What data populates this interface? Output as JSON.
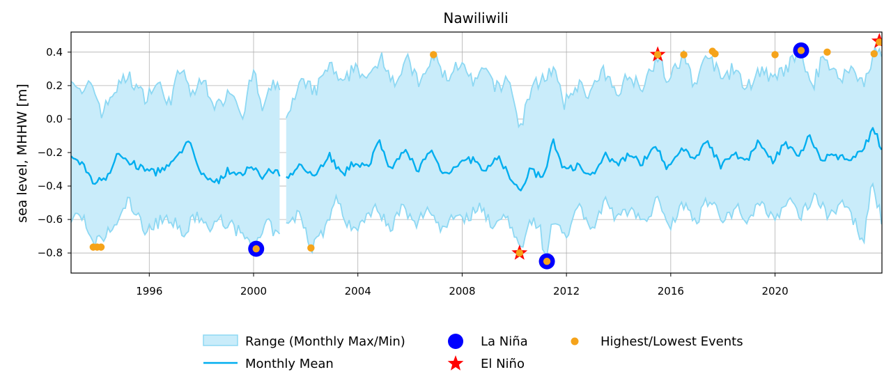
{
  "chart_data": {
    "type": "area",
    "title": "Nawiliwili",
    "xlabel": "",
    "ylabel": "sea level, MHHW [m]",
    "xlim": [
      1993.0,
      2024.1
    ],
    "ylim": [
      -0.92,
      0.52
    ],
    "grid": true,
    "legend_position": "bottom-center",
    "x_ticks": [
      1996,
      2000,
      2004,
      2008,
      2012,
      2016,
      2020
    ],
    "x_tick_labels": [
      "1996",
      "2000",
      "2004",
      "2008",
      "2012",
      "2016",
      "2020"
    ],
    "y_ticks": [
      -0.8,
      -0.6,
      -0.4,
      -0.2,
      0.0,
      0.2,
      0.4
    ],
    "y_tick_labels": [
      "−0.8",
      "−0.6",
      "−0.4",
      "−0.2",
      "0.0",
      "0.2",
      "0.4"
    ],
    "colors": {
      "range_fill": "#c9ecfa",
      "range_edge": "#8dd8f3",
      "mean": "#00aeef",
      "la_nina": "#0000ff",
      "el_nino": "#ff0000",
      "events": "#f5a31a"
    },
    "gap": [
      2001.05,
      2001.2
    ],
    "anchors": {
      "mean": [
        [
          1993.0,
          -0.24
        ],
        [
          1993.5,
          -0.27
        ],
        [
          1993.8,
          -0.38
        ],
        [
          1994.4,
          -0.34
        ],
        [
          1994.8,
          -0.21
        ],
        [
          1995.5,
          -0.28
        ],
        [
          1996.2,
          -0.32
        ],
        [
          1996.9,
          -0.27
        ],
        [
          1997.5,
          -0.13
        ],
        [
          1997.9,
          -0.3
        ],
        [
          1998.5,
          -0.39
        ],
        [
          1999.0,
          -0.31
        ],
        [
          1999.5,
          -0.34
        ],
        [
          1999.9,
          -0.26
        ],
        [
          2000.3,
          -0.36
        ],
        [
          2000.6,
          -0.31
        ],
        [
          2001.0,
          -0.33
        ],
        [
          2001.3,
          -0.37
        ],
        [
          2001.8,
          -0.25
        ],
        [
          2002.3,
          -0.35
        ],
        [
          2002.9,
          -0.21
        ],
        [
          2003.4,
          -0.34
        ],
        [
          2003.9,
          -0.25
        ],
        [
          2004.4,
          -0.3
        ],
        [
          2004.8,
          -0.1
        ],
        [
          2005.2,
          -0.32
        ],
        [
          2005.8,
          -0.19
        ],
        [
          2006.3,
          -0.3
        ],
        [
          2006.8,
          -0.19
        ],
        [
          2007.3,
          -0.33
        ],
        [
          2007.8,
          -0.27
        ],
        [
          2008.4,
          -0.24
        ],
        [
          2008.9,
          -0.32
        ],
        [
          2009.4,
          -0.22
        ],
        [
          2009.8,
          -0.34
        ],
        [
          2010.2,
          -0.44
        ],
        [
          2010.6,
          -0.3
        ],
        [
          2011.1,
          -0.36
        ],
        [
          2011.5,
          -0.13
        ],
        [
          2011.9,
          -0.3
        ],
        [
          2012.5,
          -0.28
        ],
        [
          2013.0,
          -0.33
        ],
        [
          2013.5,
          -0.22
        ],
        [
          2014.0,
          -0.28
        ],
        [
          2014.4,
          -0.2
        ],
        [
          2014.9,
          -0.27
        ],
        [
          2015.4,
          -0.14
        ],
        [
          2015.9,
          -0.3
        ],
        [
          2016.4,
          -0.18
        ],
        [
          2016.9,
          -0.24
        ],
        [
          2017.4,
          -0.12
        ],
        [
          2017.9,
          -0.28
        ],
        [
          2018.4,
          -0.19
        ],
        [
          2018.9,
          -0.26
        ],
        [
          2019.4,
          -0.13
        ],
        [
          2019.9,
          -0.25
        ],
        [
          2020.4,
          -0.14
        ],
        [
          2020.9,
          -0.23
        ],
        [
          2021.3,
          -0.1
        ],
        [
          2021.8,
          -0.24
        ],
        [
          2022.4,
          -0.22
        ],
        [
          2022.9,
          -0.26
        ],
        [
          2023.4,
          -0.16
        ],
        [
          2023.8,
          -0.06
        ],
        [
          2024.1,
          -0.19
        ]
      ],
      "upper": [
        [
          1993.0,
          0.27
        ],
        [
          1993.4,
          0.13
        ],
        [
          1993.8,
          0.22
        ],
        [
          1994.2,
          0.03
        ],
        [
          1994.6,
          0.16
        ],
        [
          1995.2,
          0.26
        ],
        [
          1995.8,
          0.13
        ],
        [
          1996.3,
          0.21
        ],
        [
          1996.8,
          0.1
        ],
        [
          1997.2,
          0.31
        ],
        [
          1997.6,
          0.15
        ],
        [
          1998.1,
          0.23
        ],
        [
          1998.6,
          0.06
        ],
        [
          1999.1,
          0.19
        ],
        [
          1999.6,
          0.03
        ],
        [
          2000.0,
          0.3
        ],
        [
          2000.3,
          0.05
        ],
        [
          2000.7,
          0.19
        ],
        [
          2001.0,
          0.2
        ],
        [
          2001.3,
          0.01
        ],
        [
          2001.8,
          0.21
        ],
        [
          2002.4,
          0.17
        ],
        [
          2002.9,
          0.33
        ],
        [
          2003.4,
          0.19
        ],
        [
          2003.9,
          0.33
        ],
        [
          2004.4,
          0.22
        ],
        [
          2004.9,
          0.39
        ],
        [
          2005.4,
          0.22
        ],
        [
          2005.9,
          0.35
        ],
        [
          2006.4,
          0.2
        ],
        [
          2006.9,
          0.38
        ],
        [
          2007.4,
          0.24
        ],
        [
          2007.9,
          0.34
        ],
        [
          2008.4,
          0.21
        ],
        [
          2008.9,
          0.29
        ],
        [
          2009.4,
          0.17
        ],
        [
          2009.8,
          0.26
        ],
        [
          2010.2,
          -0.07
        ],
        [
          2010.6,
          0.16
        ],
        [
          2011.0,
          0.24
        ],
        [
          2011.5,
          0.3
        ],
        [
          2011.9,
          0.08
        ],
        [
          2012.4,
          0.21
        ],
        [
          2012.9,
          0.15
        ],
        [
          2013.4,
          0.28
        ],
        [
          2013.9,
          0.16
        ],
        [
          2014.4,
          0.26
        ],
        [
          2014.9,
          0.2
        ],
        [
          2015.5,
          0.38
        ],
        [
          2015.9,
          0.22
        ],
        [
          2016.5,
          0.38
        ],
        [
          2016.9,
          0.21
        ],
        [
          2017.5,
          0.4
        ],
        [
          2017.9,
          0.23
        ],
        [
          2018.4,
          0.3
        ],
        [
          2018.9,
          0.18
        ],
        [
          2019.5,
          0.31
        ],
        [
          2019.9,
          0.22
        ],
        [
          2020.4,
          0.3
        ],
        [
          2021.0,
          0.4
        ],
        [
          2021.4,
          0.18
        ],
        [
          2021.9,
          0.39
        ],
        [
          2022.4,
          0.24
        ],
        [
          2022.9,
          0.3
        ],
        [
          2023.4,
          0.22
        ],
        [
          2023.8,
          0.4
        ],
        [
          2024.1,
          0.38
        ]
      ],
      "lower": [
        [
          1993.0,
          -0.6
        ],
        [
          1993.4,
          -0.56
        ],
        [
          1993.8,
          -0.76
        ],
        [
          1994.3,
          -0.7
        ],
        [
          1994.8,
          -0.62
        ],
        [
          1995.2,
          -0.48
        ],
        [
          1995.8,
          -0.66
        ],
        [
          1996.3,
          -0.62
        ],
        [
          1996.8,
          -0.58
        ],
        [
          1997.3,
          -0.7
        ],
        [
          1997.8,
          -0.57
        ],
        [
          1998.3,
          -0.66
        ],
        [
          1998.8,
          -0.6
        ],
        [
          1999.3,
          -0.66
        ],
        [
          1999.8,
          -0.71
        ],
        [
          2000.1,
          -0.77
        ],
        [
          2000.5,
          -0.62
        ],
        [
          2001.0,
          -0.71
        ],
        [
          2001.3,
          -0.63
        ],
        [
          2001.8,
          -0.56
        ],
        [
          2002.2,
          -0.77
        ],
        [
          2002.7,
          -0.66
        ],
        [
          2003.2,
          -0.48
        ],
        [
          2003.7,
          -0.65
        ],
        [
          2004.2,
          -0.62
        ],
        [
          2004.7,
          -0.5
        ],
        [
          2005.2,
          -0.66
        ],
        [
          2005.7,
          -0.53
        ],
        [
          2006.2,
          -0.64
        ],
        [
          2006.7,
          -0.52
        ],
        [
          2007.2,
          -0.66
        ],
        [
          2007.7,
          -0.56
        ],
        [
          2008.2,
          -0.6
        ],
        [
          2008.7,
          -0.5
        ],
        [
          2009.2,
          -0.66
        ],
        [
          2009.7,
          -0.55
        ],
        [
          2010.2,
          -0.8
        ],
        [
          2010.6,
          -0.58
        ],
        [
          2011.0,
          -0.66
        ],
        [
          2011.2,
          -0.85
        ],
        [
          2011.5,
          -0.6
        ],
        [
          2012.0,
          -0.68
        ],
        [
          2012.5,
          -0.52
        ],
        [
          2013.0,
          -0.66
        ],
        [
          2013.5,
          -0.5
        ],
        [
          2014.0,
          -0.6
        ],
        [
          2014.5,
          -0.52
        ],
        [
          2015.0,
          -0.63
        ],
        [
          2015.5,
          -0.48
        ],
        [
          2016.0,
          -0.63
        ],
        [
          2016.5,
          -0.5
        ],
        [
          2017.0,
          -0.6
        ],
        [
          2017.5,
          -0.46
        ],
        [
          2018.0,
          -0.62
        ],
        [
          2018.5,
          -0.52
        ],
        [
          2019.0,
          -0.6
        ],
        [
          2019.5,
          -0.5
        ],
        [
          2020.0,
          -0.6
        ],
        [
          2020.5,
          -0.48
        ],
        [
          2021.0,
          -0.58
        ],
        [
          2021.5,
          -0.44
        ],
        [
          2022.0,
          -0.58
        ],
        [
          2022.5,
          -0.5
        ],
        [
          2023.0,
          -0.6
        ],
        [
          2023.4,
          -0.73
        ],
        [
          2023.7,
          -0.4
        ],
        [
          2024.1,
          -0.6
        ]
      ]
    },
    "series": [
      {
        "name": "Range (Monthly Max/Min)",
        "kind": "band"
      },
      {
        "name": "Monthly Mean",
        "kind": "line"
      },
      {
        "name": "La Niña",
        "kind": "marker",
        "points": [
          [
            2000.1,
            -0.775
          ],
          [
            2011.25,
            -0.85
          ],
          [
            2021.0,
            0.41
          ]
        ]
      },
      {
        "name": "El Niño",
        "kind": "marker",
        "points": [
          [
            2010.2,
            -0.8
          ],
          [
            2015.5,
            0.385
          ],
          [
            2024.0,
            0.465
          ]
        ]
      },
      {
        "name": "Highest/Lowest Events",
        "kind": "marker",
        "points": [
          [
            1993.85,
            -0.765
          ],
          [
            1994.0,
            -0.765
          ],
          [
            1994.15,
            -0.765
          ],
          [
            2000.1,
            -0.775
          ],
          [
            2002.2,
            -0.77
          ],
          [
            2006.9,
            0.385
          ],
          [
            2010.2,
            -0.8
          ],
          [
            2011.25,
            -0.85
          ],
          [
            2015.5,
            0.385
          ],
          [
            2016.5,
            0.385
          ],
          [
            2017.6,
            0.405
          ],
          [
            2017.7,
            0.39
          ],
          [
            2020.0,
            0.385
          ],
          [
            2021.0,
            0.41
          ],
          [
            2022.0,
            0.4
          ],
          [
            2023.8,
            0.39
          ],
          [
            2024.0,
            0.46
          ]
        ]
      }
    ]
  }
}
